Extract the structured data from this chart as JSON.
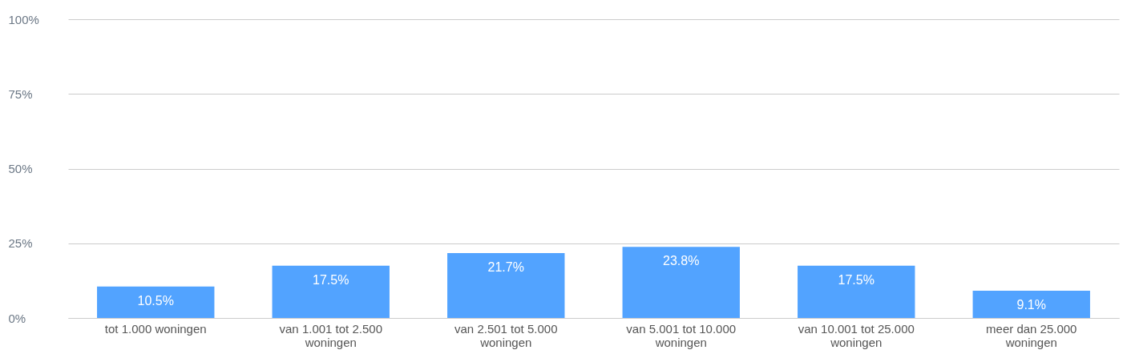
{
  "chart_data": {
    "type": "bar",
    "categories": [
      "tot 1.000 woningen",
      "van 1.001 tot 2.500 woningen",
      "van 2.501 tot 5.000 woningen",
      "van 5.001 tot 10.000 woningen",
      "van 10.001 tot 25.000 woningen",
      "meer dan 25.000 woningen"
    ],
    "values": [
      10.5,
      17.5,
      21.7,
      23.8,
      17.5,
      9.1
    ],
    "value_labels": [
      "10.5%",
      "17.5%",
      "21.7%",
      "23.8%",
      "17.5%",
      "9.1%"
    ],
    "color": "#52a3ff",
    "ylim": [
      0,
      100
    ],
    "yticks": [
      {
        "value": 0,
        "label": "0%"
      },
      {
        "value": 25,
        "label": "25%"
      },
      {
        "value": 50,
        "label": "50%"
      },
      {
        "value": 75,
        "label": "75%"
      },
      {
        "value": 100,
        "label": "100%"
      }
    ],
    "grid": "y"
  }
}
